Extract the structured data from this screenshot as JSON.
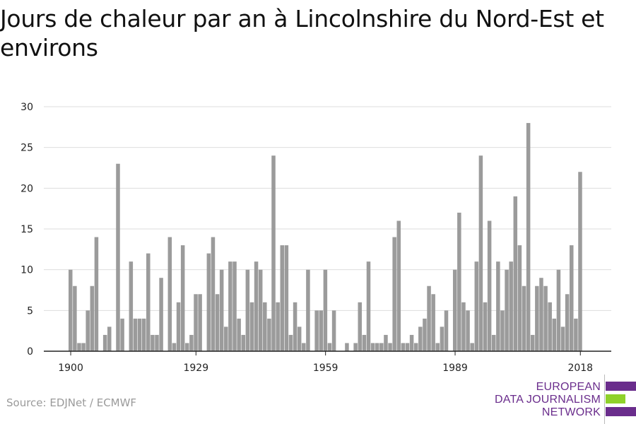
{
  "chart_data": {
    "type": "bar",
    "title": "Jours de chaleur par an à Lincolnshire du Nord-Est et environs",
    "x": [
      1900,
      1901,
      1902,
      1903,
      1904,
      1905,
      1906,
      1907,
      1908,
      1909,
      1910,
      1911,
      1912,
      1913,
      1914,
      1915,
      1916,
      1917,
      1918,
      1919,
      1920,
      1921,
      1922,
      1923,
      1924,
      1925,
      1926,
      1927,
      1928,
      1929,
      1930,
      1931,
      1932,
      1933,
      1934,
      1935,
      1936,
      1937,
      1938,
      1939,
      1940,
      1941,
      1942,
      1943,
      1944,
      1945,
      1946,
      1947,
      1948,
      1949,
      1950,
      1951,
      1952,
      1953,
      1954,
      1955,
      1956,
      1957,
      1958,
      1959,
      1960,
      1961,
      1962,
      1963,
      1964,
      1965,
      1966,
      1967,
      1968,
      1969,
      1970,
      1971,
      1972,
      1973,
      1974,
      1975,
      1976,
      1977,
      1978,
      1979,
      1980,
      1981,
      1982,
      1983,
      1984,
      1985,
      1986,
      1987,
      1988,
      1989,
      1990,
      1991,
      1992,
      1993,
      1994,
      1995,
      1996,
      1997,
      1998,
      1999,
      2000,
      2001,
      2002,
      2003,
      2004,
      2005,
      2006,
      2007,
      2008,
      2009,
      2010,
      2011,
      2012,
      2013,
      2014,
      2015,
      2016,
      2017,
      2018
    ],
    "values": [
      10,
      8,
      1,
      1,
      5,
      8,
      14,
      0,
      2,
      3,
      0,
      23,
      4,
      0,
      11,
      4,
      4,
      4,
      12,
      2,
      2,
      9,
      0,
      14,
      1,
      6,
      13,
      1,
      2,
      7,
      7,
      0,
      12,
      14,
      7,
      10,
      3,
      11,
      11,
      4,
      2,
      10,
      6,
      11,
      10,
      6,
      4,
      24,
      6,
      13,
      13,
      2,
      6,
      3,
      1,
      10,
      0,
      5,
      5,
      10,
      1,
      5,
      0,
      0,
      1,
      0,
      1,
      6,
      2,
      11,
      1,
      1,
      1,
      2,
      1,
      14,
      16,
      1,
      1,
      2,
      1,
      3,
      4,
      8,
      7,
      1,
      3,
      5,
      0,
      10,
      17,
      6,
      5,
      1,
      11,
      24,
      6,
      16,
      2,
      11,
      5,
      10,
      11,
      19,
      13,
      8,
      28,
      2,
      8,
      9,
      8,
      6,
      4,
      10,
      3,
      7,
      13,
      4,
      22
    ],
    "yticks": [
      0,
      5,
      10,
      15,
      20,
      25,
      30
    ],
    "xticks": [
      1900,
      1929,
      1959,
      1989,
      2018
    ],
    "ylim": [
      0,
      30
    ],
    "grid": true,
    "bar_color": "#9b9b9b",
    "grid_color": "#dddddd",
    "axis_color": "#222222"
  },
  "source": "Source: EDJNet / ECMWF",
  "logo": {
    "lines": [
      "EUROPEAN",
      "DATA JOURNALISM",
      "NETWORK"
    ],
    "text_color": "#6a2d8c",
    "bar_colors": [
      "#6a2d8c",
      "#8fd12a",
      "#6a2d8c"
    ]
  }
}
